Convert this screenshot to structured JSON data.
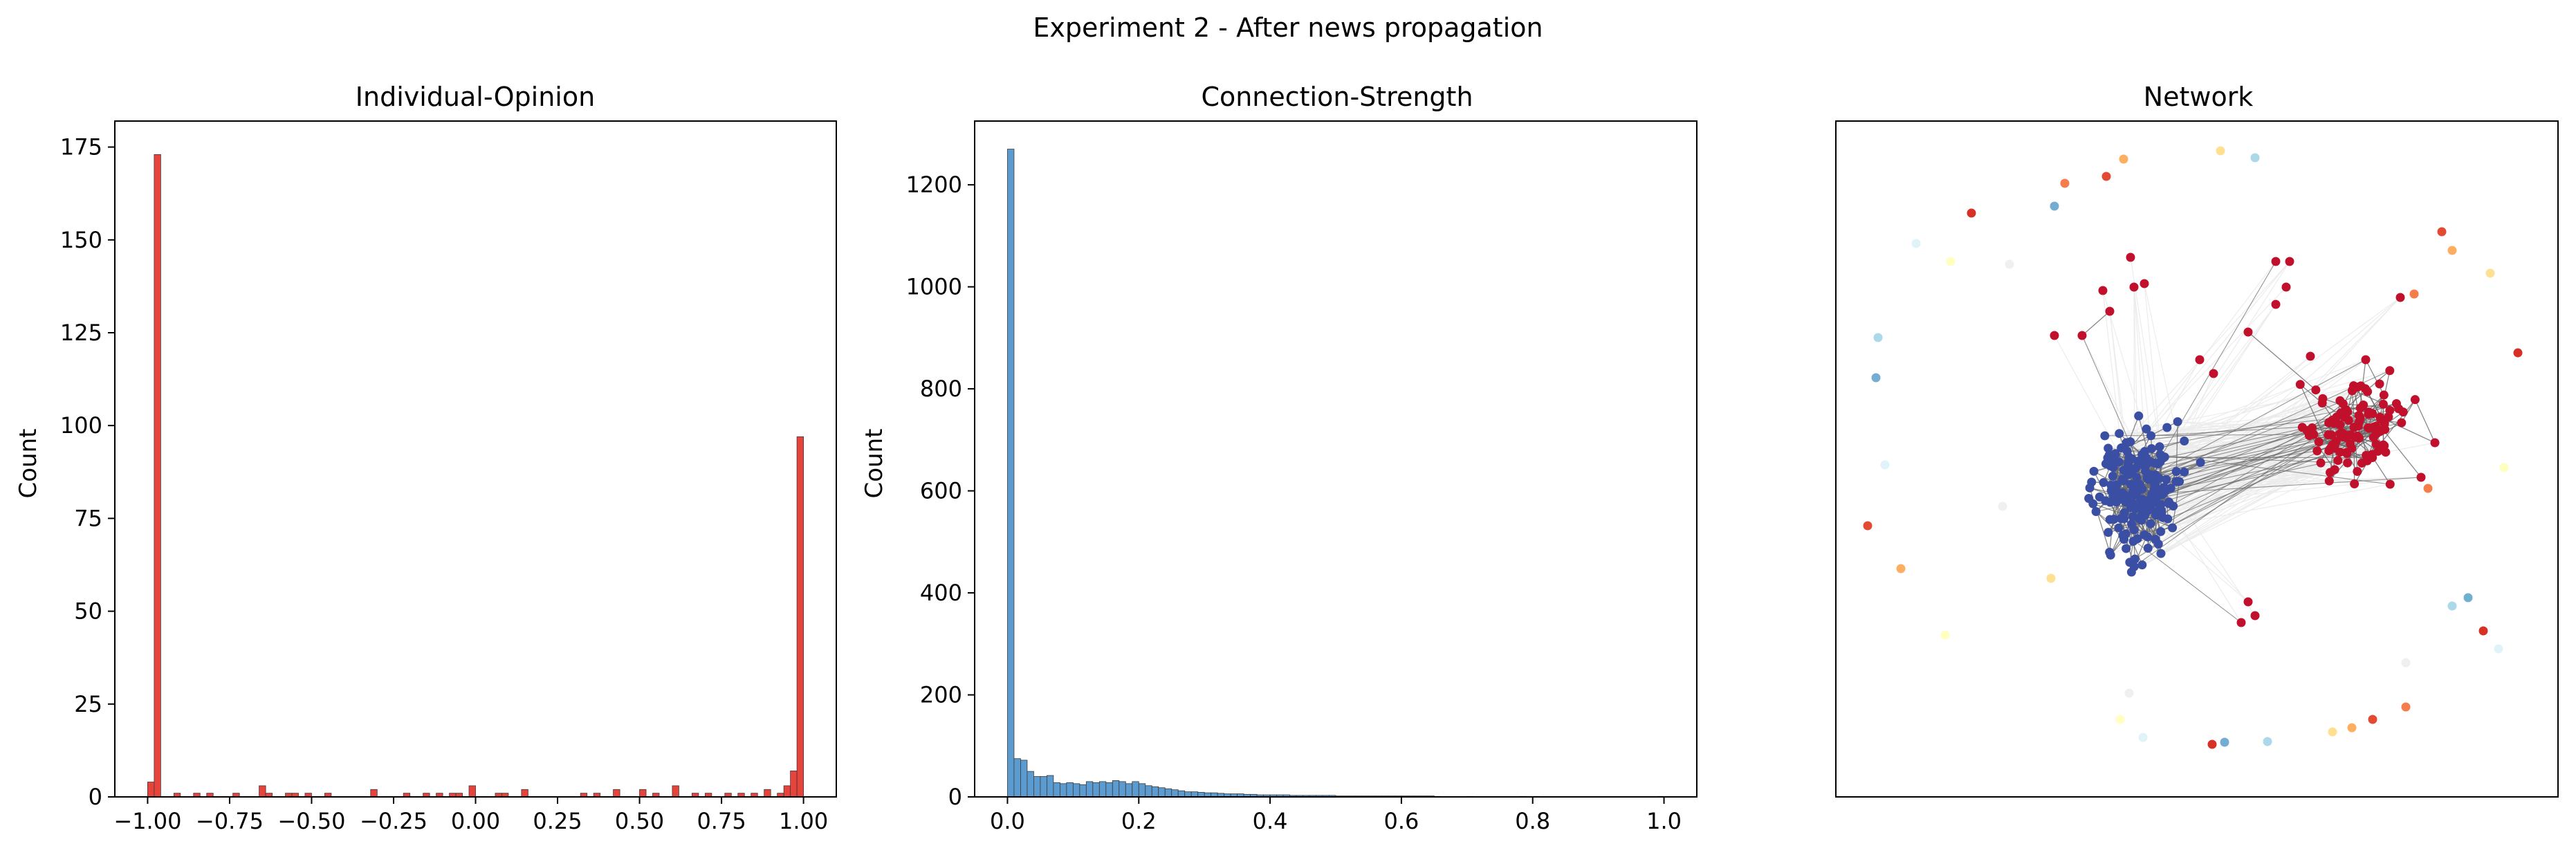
{
  "figure": {
    "suptitle": "Experiment 2 - After news propagation"
  },
  "chart_data": [
    {
      "type": "bar",
      "title": "Individual-Opinion",
      "xlabel": "",
      "ylabel": "Count",
      "xlim": [
        -1.1,
        1.1
      ],
      "ylim": [
        0,
        182
      ],
      "xticks": [
        "−1.00",
        "−0.75",
        "−0.50",
        "−0.25",
        "0.00",
        "0.25",
        "0.50",
        "0.75",
        "1.00"
      ],
      "yticks": [
        "0",
        "25",
        "50",
        "75",
        "100",
        "125",
        "150",
        "175"
      ],
      "bar_color": "#e8433a",
      "bin_width": 0.02,
      "bins_left_edge": [
        -1.0,
        -0.98,
        -0.92,
        -0.86,
        -0.82,
        -0.74,
        -0.66,
        -0.64,
        -0.58,
        -0.56,
        -0.52,
        -0.46,
        -0.32,
        -0.22,
        -0.16,
        -0.12,
        -0.08,
        -0.06,
        -0.02,
        0.06,
        0.08,
        0.14,
        0.32,
        0.36,
        0.42,
        0.5,
        0.54,
        0.6,
        0.66,
        0.7,
        0.76,
        0.8,
        0.84,
        0.88,
        0.92,
        0.94,
        0.96,
        0.98
      ],
      "counts": [
        4,
        173,
        1,
        1,
        1,
        1,
        3,
        1,
        1,
        1,
        1,
        1,
        2,
        1,
        1,
        1,
        1,
        1,
        3,
        1,
        1,
        2,
        1,
        1,
        2,
        2,
        1,
        3,
        1,
        1,
        1,
        1,
        1,
        2,
        1,
        3,
        7,
        97
      ]
    },
    {
      "type": "bar",
      "title": "Connection-Strength",
      "xlabel": "",
      "ylabel": "Count",
      "xlim": [
        -0.05,
        1.05
      ],
      "ylim": [
        0,
        1325
      ],
      "xticks": [
        "0.0",
        "0.2",
        "0.4",
        "0.6",
        "0.8",
        "1.0"
      ],
      "yticks": [
        "0",
        "200",
        "400",
        "600",
        "800",
        "1000",
        "1200"
      ],
      "bar_color": "#5b9bd0",
      "bin_width": 0.01,
      "bins_left_edge": [
        0.0,
        0.01,
        0.02,
        0.03,
        0.04,
        0.05,
        0.06,
        0.07,
        0.08,
        0.09,
        0.1,
        0.11,
        0.12,
        0.13,
        0.14,
        0.15,
        0.16,
        0.17,
        0.18,
        0.19,
        0.2,
        0.21,
        0.22,
        0.23,
        0.24,
        0.25,
        0.26,
        0.27,
        0.28,
        0.29,
        0.3,
        0.31,
        0.32,
        0.33,
        0.34,
        0.35,
        0.36,
        0.37,
        0.38,
        0.39,
        0.4,
        0.41,
        0.42,
        0.43,
        0.44,
        0.45,
        0.46,
        0.47,
        0.48,
        0.49,
        0.5,
        0.51,
        0.52,
        0.53,
        0.54,
        0.55,
        0.56,
        0.57,
        0.58,
        0.59,
        0.6,
        0.61,
        0.62,
        0.63,
        0.64,
        0.65,
        0.7,
        0.78,
        0.8,
        0.99
      ],
      "counts": [
        1270,
        75,
        72,
        50,
        40,
        40,
        42,
        28,
        26,
        28,
        26,
        24,
        30,
        28,
        30,
        28,
        32,
        30,
        26,
        30,
        26,
        22,
        20,
        18,
        16,
        14,
        12,
        10,
        10,
        9,
        8,
        8,
        7,
        6,
        6,
        6,
        5,
        5,
        4,
        4,
        4,
        4,
        4,
        3,
        3,
        3,
        3,
        3,
        3,
        3,
        2,
        2,
        2,
        2,
        2,
        2,
        2,
        2,
        2,
        2,
        2,
        2,
        2,
        2,
        2,
        1,
        1,
        1,
        1,
        1
      ]
    },
    {
      "type": "scatter",
      "title": "Network",
      "axes_ticks": "none",
      "colors": {
        "blue": "#3a4ea3",
        "red": "#c0102b",
        "edge": "#6a6a6a",
        "faint": "#ececec"
      },
      "isolated_colors": [
        "#f47d4a",
        "#e34a33",
        "#fdae61",
        "#fee090",
        "#abd9e9",
        "#74add1",
        "#d73027",
        "#e0f3f8",
        "#ffffbf",
        "#f0f0f0"
      ]
    }
  ]
}
